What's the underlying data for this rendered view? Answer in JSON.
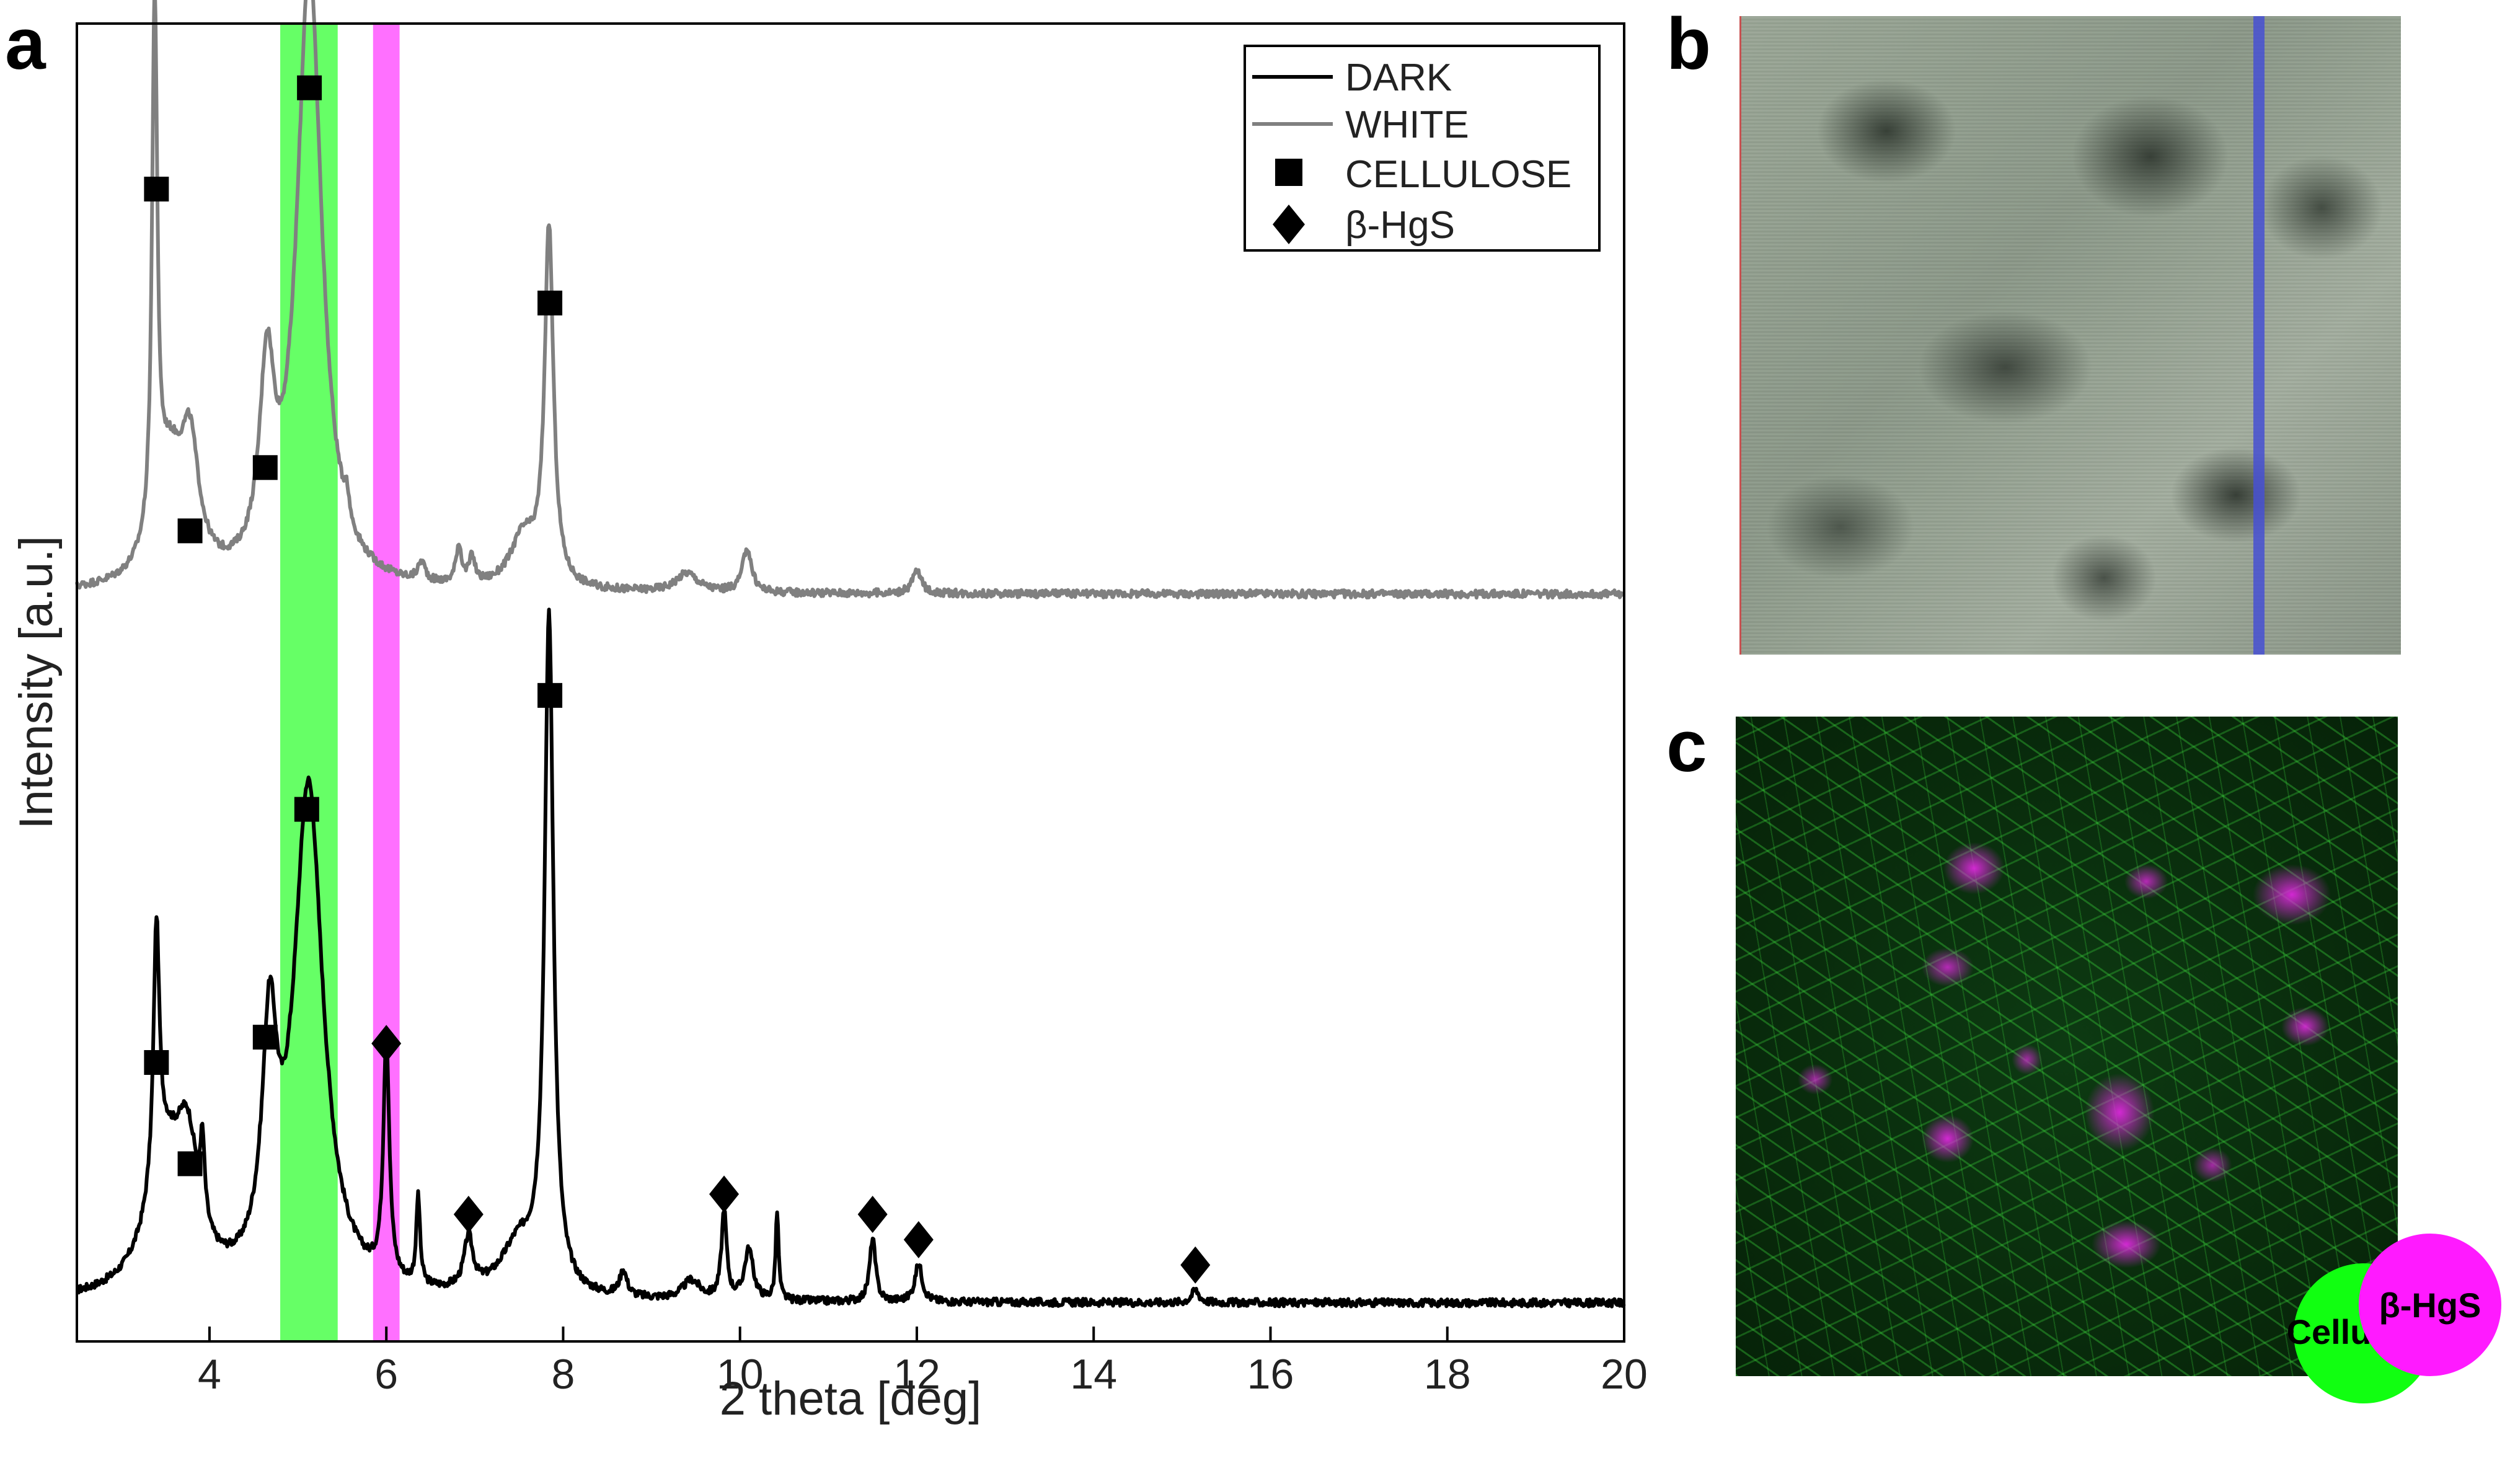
{
  "panels": {
    "a": "a",
    "b": "b",
    "c": "c"
  },
  "chart_data": {
    "type": "line",
    "xlabel": "2 theta [deg]",
    "ylabel": "Intensity [a.u.]",
    "xlim": [
      2.5,
      20
    ],
    "ylim": [
      0,
      1
    ],
    "x_ticks": [
      4,
      6,
      8,
      10,
      12,
      14,
      16,
      18,
      20
    ],
    "grid": false,
    "legend_position": "top-right",
    "legend": {
      "dark": "DARK",
      "white": "WHITE",
      "cellulose": "CELLULOSE",
      "hgs": "β-HgS"
    },
    "shaded_bands": [
      {
        "x_from": 4.8,
        "x_to": 5.45,
        "color": "#66ff66"
      },
      {
        "x_from": 5.85,
        "x_to": 6.15,
        "color": "#ff70ff"
      }
    ],
    "series": [
      {
        "name": "DARK",
        "color": "#000000",
        "baseline": 0.0,
        "peaks": [
          {
            "x": 3.4,
            "h": 0.2,
            "w": 0.04
          },
          {
            "x": 3.5,
            "h": 0.1,
            "w": 0.25
          },
          {
            "x": 3.75,
            "h": 0.09,
            "w": 0.15
          },
          {
            "x": 3.92,
            "h": 0.06,
            "w": 0.03
          },
          {
            "x": 4.68,
            "h": 0.18,
            "w": 0.1
          },
          {
            "x": 5.12,
            "h": 0.4,
            "w": 0.2
          },
          {
            "x": 6.0,
            "h": 0.19,
            "w": 0.04
          },
          {
            "x": 6.36,
            "h": 0.07,
            "w": 0.025
          },
          {
            "x": 6.93,
            "h": 0.04,
            "w": 0.06
          },
          {
            "x": 7.5,
            "h": 0.04,
            "w": 0.25
          },
          {
            "x": 7.84,
            "h": 0.53,
            "w": 0.06
          },
          {
            "x": 8.68,
            "h": 0.02,
            "w": 0.05
          },
          {
            "x": 9.45,
            "h": 0.015,
            "w": 0.12
          },
          {
            "x": 9.82,
            "h": 0.07,
            "w": 0.035
          },
          {
            "x": 10.1,
            "h": 0.04,
            "w": 0.06
          },
          {
            "x": 10.42,
            "h": 0.07,
            "w": 0.02
          },
          {
            "x": 11.5,
            "h": 0.05,
            "w": 0.04
          },
          {
            "x": 12.02,
            "h": 0.03,
            "w": 0.05
          },
          {
            "x": 15.15,
            "h": 0.01,
            "w": 0.05
          }
        ]
      },
      {
        "name": "WHITE",
        "color": "#808080",
        "baseline": 0.56,
        "peaks": [
          {
            "x": 3.38,
            "h": 0.42,
            "w": 0.035
          },
          {
            "x": 3.55,
            "h": 0.09,
            "w": 0.2
          },
          {
            "x": 3.78,
            "h": 0.09,
            "w": 0.12
          },
          {
            "x": 4.65,
            "h": 0.15,
            "w": 0.1
          },
          {
            "x": 5.13,
            "h": 0.49,
            "w": 0.17
          },
          {
            "x": 5.55,
            "h": 0.02,
            "w": 0.03
          },
          {
            "x": 6.4,
            "h": 0.015,
            "w": 0.05
          },
          {
            "x": 6.82,
            "h": 0.03,
            "w": 0.04
          },
          {
            "x": 6.97,
            "h": 0.02,
            "w": 0.04
          },
          {
            "x": 7.55,
            "h": 0.04,
            "w": 0.18
          },
          {
            "x": 7.84,
            "h": 0.28,
            "w": 0.06
          },
          {
            "x": 9.4,
            "h": 0.015,
            "w": 0.15
          },
          {
            "x": 10.08,
            "h": 0.035,
            "w": 0.06
          },
          {
            "x": 12.0,
            "h": 0.018,
            "w": 0.06
          }
        ]
      }
    ],
    "markers": [
      {
        "type": "square",
        "x": 3.4,
        "y": 0.88
      },
      {
        "type": "square",
        "x": 3.78,
        "y": 0.61
      },
      {
        "type": "square",
        "x": 4.63,
        "y": 0.66
      },
      {
        "type": "square",
        "x": 5.13,
        "y": 0.96
      },
      {
        "type": "square",
        "x": 7.85,
        "y": 0.79
      },
      {
        "type": "square",
        "x": 7.85,
        "y": 0.48
      },
      {
        "type": "square",
        "x": 3.4,
        "y": 0.19
      },
      {
        "type": "square",
        "x": 3.78,
        "y": 0.11
      },
      {
        "type": "square",
        "x": 4.63,
        "y": 0.21
      },
      {
        "type": "square",
        "x": 5.1,
        "y": 0.39
      },
      {
        "type": "diamond",
        "x": 6.0,
        "y": 0.205
      },
      {
        "type": "diamond",
        "x": 6.93,
        "y": 0.07
      },
      {
        "type": "diamond",
        "x": 9.82,
        "y": 0.086
      },
      {
        "type": "diamond",
        "x": 11.5,
        "y": 0.07
      },
      {
        "type": "diamond",
        "x": 12.02,
        "y": 0.05
      },
      {
        "type": "diamond",
        "x": 15.15,
        "y": 0.03
      }
    ]
  },
  "inset_legend": {
    "hgs": "β-HgS",
    "cellulose": "Cellulose",
    "hgs_color": "#ff1aff",
    "cellulose_color": "#11ff11"
  }
}
